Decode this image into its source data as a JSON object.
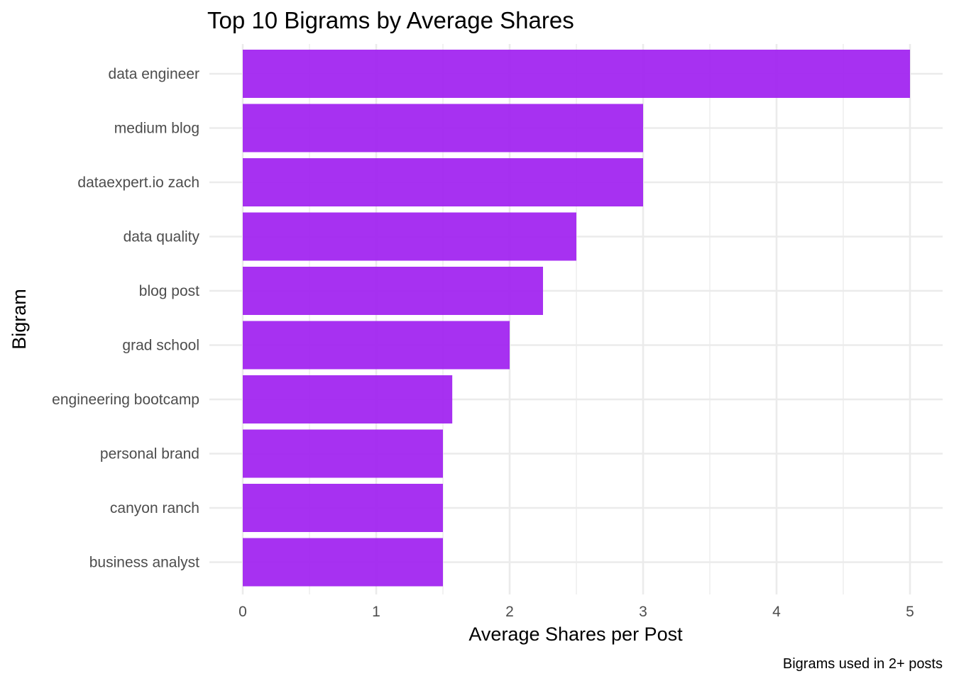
{
  "chart_data": {
    "type": "bar",
    "orientation": "horizontal",
    "title": "Top 10 Bigrams by Average Shares",
    "xlabel": "Average Shares per Post",
    "ylabel": "Bigram",
    "caption": "Bigrams used in 2+ posts",
    "categories": [
      "data engineer",
      "medium blog",
      "dataexpert.io zach",
      "data quality",
      "blog post",
      "grad school",
      "engineering bootcamp",
      "personal brand",
      "canyon ranch",
      "business analyst"
    ],
    "values": [
      5,
      3,
      3,
      2.5,
      2.25,
      2,
      1.57,
      1.5,
      1.5,
      1.5
    ],
    "xlim": [
      0,
      5
    ],
    "x_ticks": [
      "0",
      "1",
      "2",
      "3",
      "4",
      "5"
    ],
    "bar_color": "#a020f0",
    "grid": true,
    "legend": "none"
  }
}
